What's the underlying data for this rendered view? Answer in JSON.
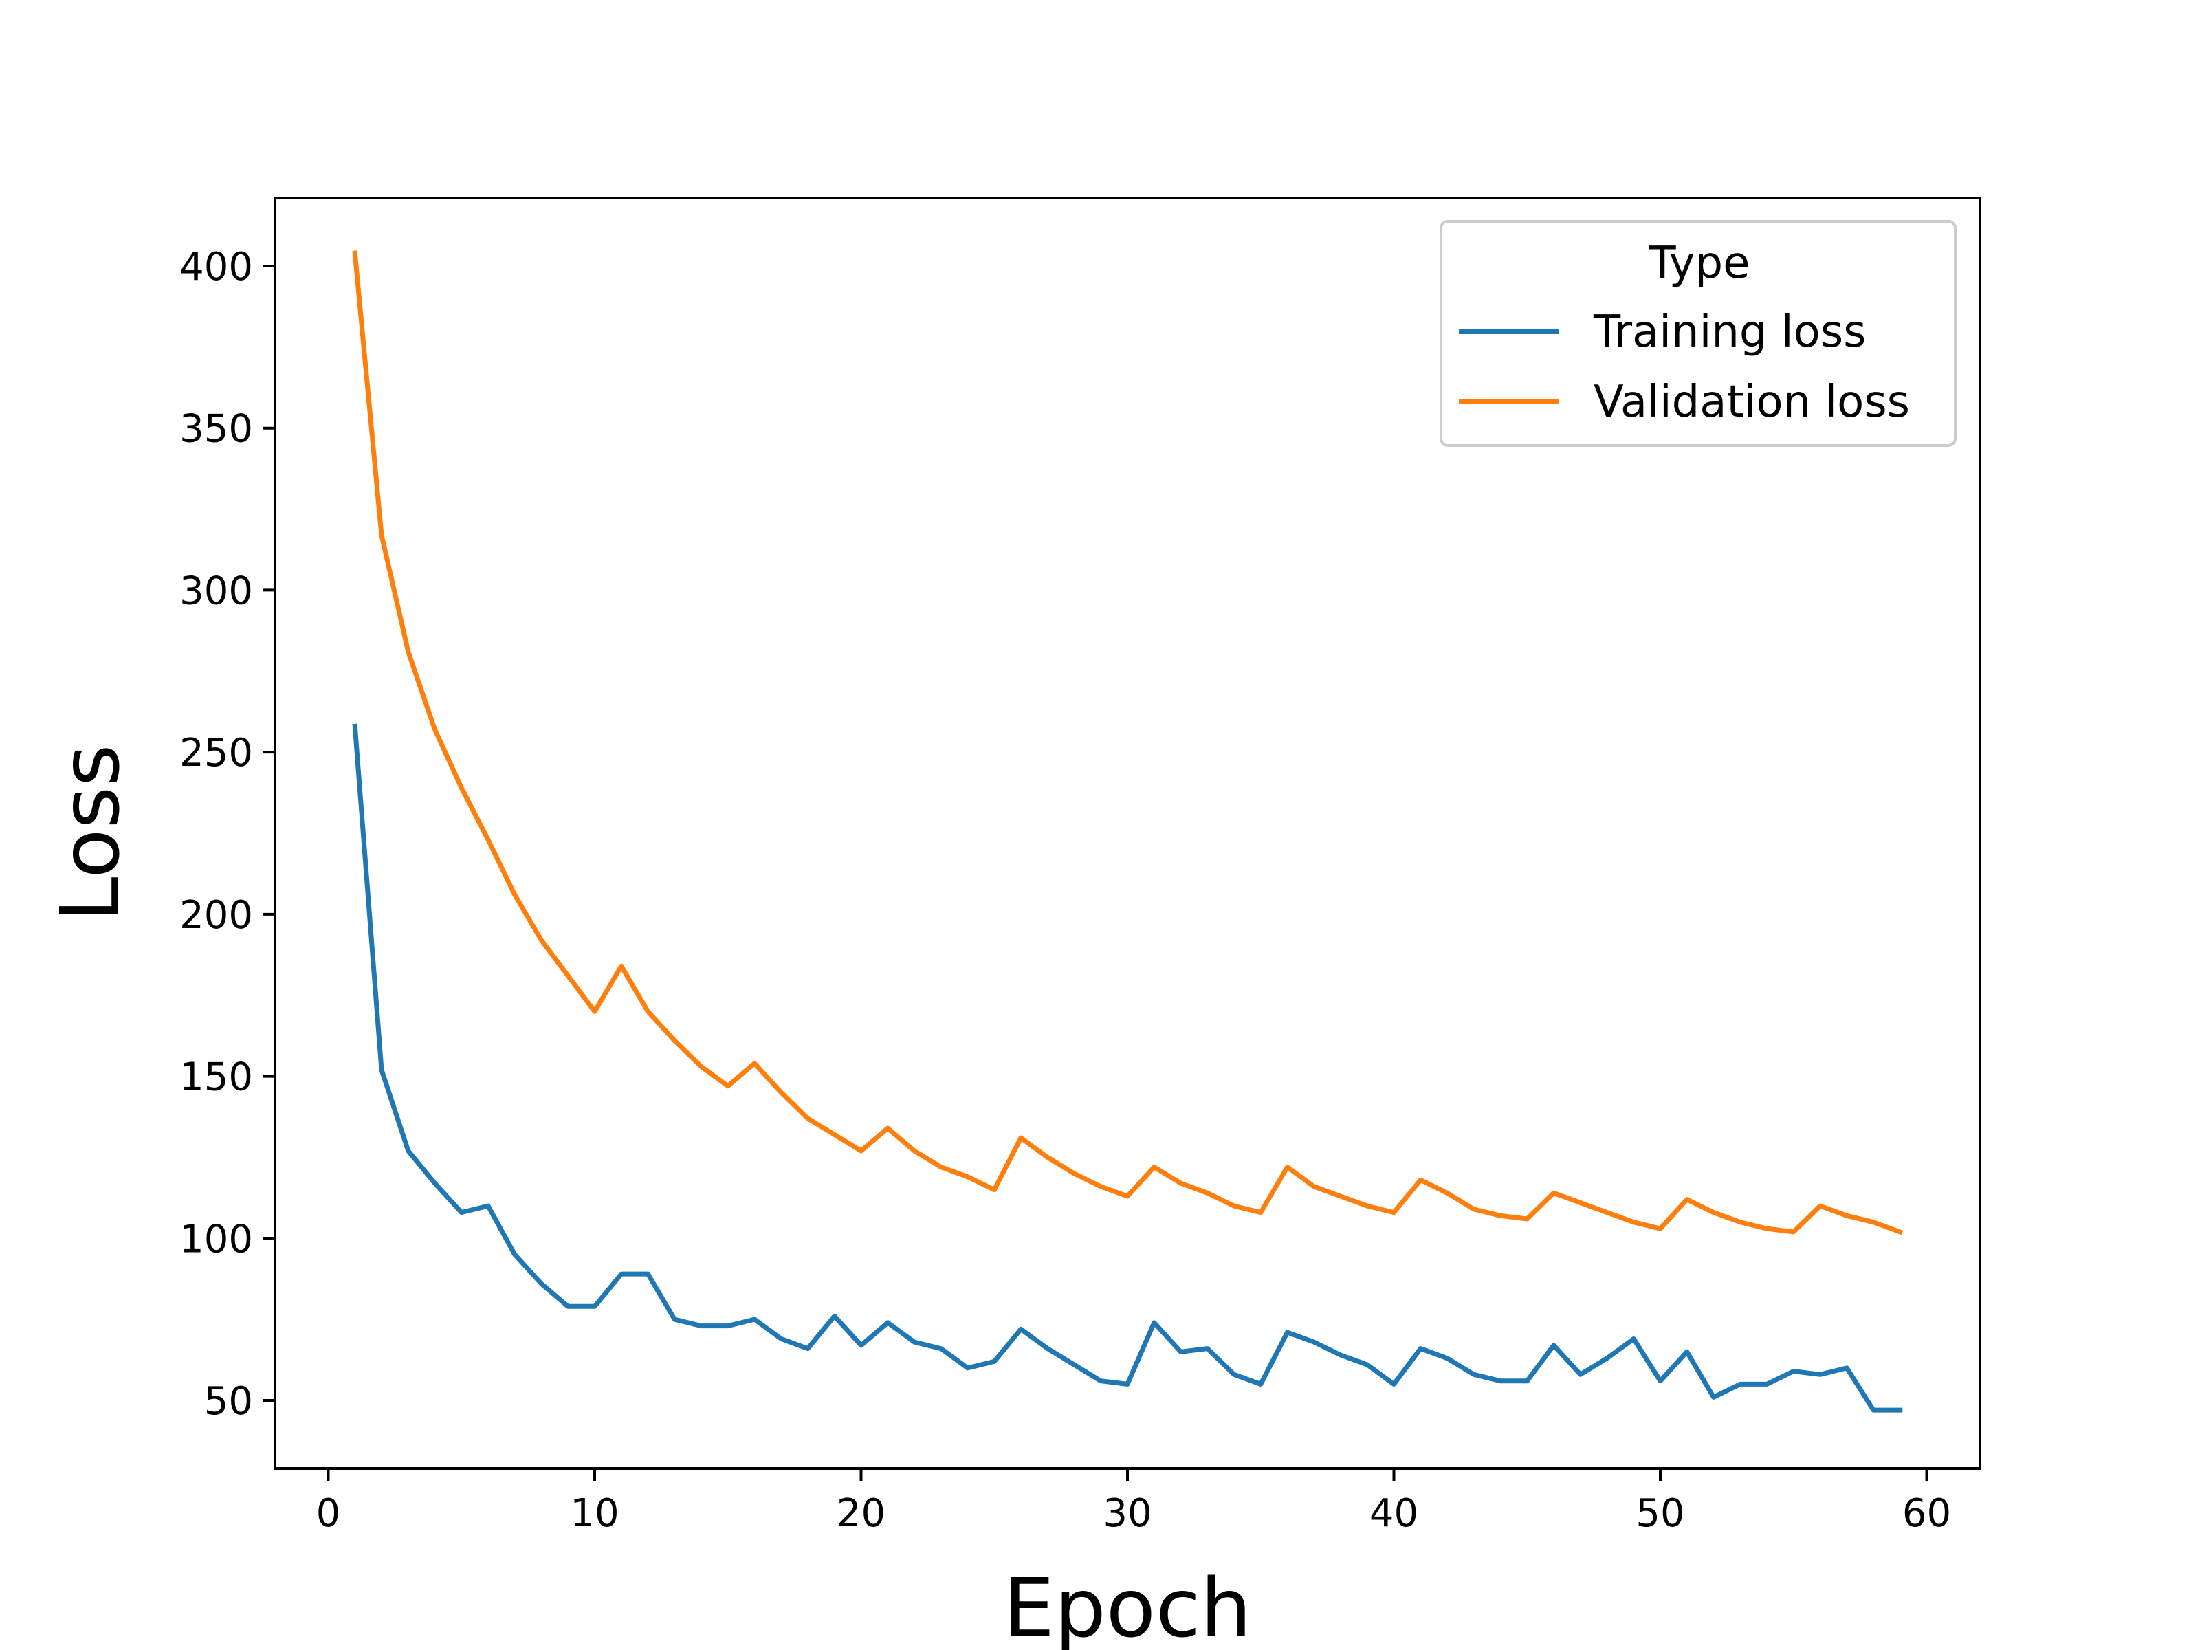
{
  "chart_data": {
    "type": "line",
    "title": "",
    "xlabel": "Epoch",
    "ylabel": "Loss",
    "xlim": [
      -2,
      62
    ],
    "ylim": [
      29,
      421
    ],
    "xticks": [
      0,
      10,
      20,
      30,
      40,
      50,
      60
    ],
    "yticks": [
      50,
      100,
      150,
      200,
      250,
      300,
      350,
      400
    ],
    "grid": false,
    "legend": {
      "title": "Type",
      "placement": "top-right"
    },
    "x": [
      1,
      2,
      3,
      4,
      5,
      6,
      7,
      8,
      9,
      10,
      11,
      12,
      13,
      14,
      15,
      16,
      17,
      18,
      19,
      20,
      21,
      22,
      23,
      24,
      25,
      26,
      27,
      28,
      29,
      30,
      31,
      32,
      33,
      34,
      35,
      36,
      37,
      38,
      39,
      40,
      41,
      42,
      43,
      44,
      45,
      46,
      47,
      48,
      49,
      50,
      51,
      52,
      53,
      54,
      55,
      56,
      57,
      58,
      59
    ],
    "series": [
      {
        "name": "Training loss",
        "color": "#1f77b4",
        "values": [
          258,
          152,
          127,
          117,
          108,
          110,
          95,
          86,
          79,
          79,
          89,
          89,
          75,
          73,
          73,
          75,
          69,
          66,
          76,
          67,
          74,
          68,
          66,
          60,
          62,
          72,
          66,
          61,
          56,
          55,
          74,
          65,
          66,
          58,
          55,
          71,
          68,
          64,
          61,
          55,
          66,
          63,
          58,
          56,
          56,
          67,
          58,
          63,
          69,
          56,
          65,
          51,
          55,
          55,
          59,
          58,
          60,
          47,
          47
        ]
      },
      {
        "name": "Validation loss",
        "color": "#ff7f0e",
        "values": [
          404,
          317,
          281,
          257,
          239,
          223,
          206,
          192,
          181,
          170,
          184,
          170,
          161,
          153,
          147,
          154,
          145,
          137,
          132,
          127,
          134,
          127,
          122,
          119,
          115,
          131,
          125,
          120,
          116,
          113,
          122,
          117,
          114,
          110,
          108,
          122,
          116,
          113,
          110,
          108,
          118,
          114,
          109,
          107,
          106,
          114,
          111,
          108,
          105,
          103,
          112,
          108,
          105,
          103,
          102,
          110,
          107,
          105,
          102
        ]
      }
    ]
  }
}
